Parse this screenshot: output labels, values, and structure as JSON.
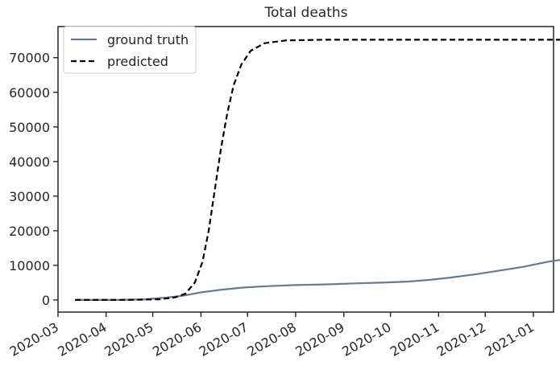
{
  "chart_data": {
    "type": "line",
    "title": "Total deaths",
    "xlabel": "",
    "ylabel": "",
    "xlim": [
      "2020-03-01",
      "2021-01-14"
    ],
    "ylim": [
      -3500,
      79000
    ],
    "x_ticks": [
      "2020-03",
      "2020-04",
      "2020-05",
      "2020-06",
      "2020-07",
      "2020-08",
      "2020-09",
      "2020-10",
      "2020-11",
      "2020-12",
      "2021-01"
    ],
    "y_ticks": [
      "0",
      "10000",
      "20000",
      "30000",
      "40000",
      "50000",
      "60000",
      "70000"
    ],
    "grid": false,
    "legend_position": "top-left",
    "series": [
      {
        "name": "ground truth",
        "color": "#6b7a90",
        "style": "solid",
        "points": [
          [
            "2020-03-12",
            0
          ],
          [
            "2020-03-25",
            0
          ],
          [
            "2020-04-10",
            0
          ],
          [
            "2020-04-26",
            200
          ],
          [
            "2020-05-10",
            700
          ],
          [
            "2020-05-20",
            1200
          ],
          [
            "2020-06-01",
            2200
          ],
          [
            "2020-06-15",
            3000
          ],
          [
            "2020-06-29",
            3600
          ],
          [
            "2020-07-15",
            4000
          ],
          [
            "2020-08-01",
            4300
          ],
          [
            "2020-08-20",
            4500
          ],
          [
            "2020-09-08",
            4800
          ],
          [
            "2020-09-25",
            5000
          ],
          [
            "2020-10-12",
            5300
          ],
          [
            "2020-10-26",
            5800
          ],
          [
            "2020-11-09",
            6500
          ],
          [
            "2020-11-26",
            7500
          ],
          [
            "2020-12-10",
            8500
          ],
          [
            "2020-12-26",
            9600
          ],
          [
            "2021-01-10",
            11000
          ],
          [
            "2021-01-24",
            12000
          ]
        ]
      },
      {
        "name": "predicted",
        "color": "#000000",
        "style": "dashed",
        "points": [
          [
            "2020-03-12",
            0
          ],
          [
            "2020-04-01",
            0
          ],
          [
            "2020-04-20",
            50
          ],
          [
            "2020-05-05",
            200
          ],
          [
            "2020-05-15",
            700
          ],
          [
            "2020-05-22",
            1800
          ],
          [
            "2020-05-28",
            5000
          ],
          [
            "2020-06-02",
            11000
          ],
          [
            "2020-06-06",
            20000
          ],
          [
            "2020-06-10",
            32000
          ],
          [
            "2020-06-14",
            44000
          ],
          [
            "2020-06-18",
            54000
          ],
          [
            "2020-06-22",
            62000
          ],
          [
            "2020-06-27",
            68000
          ],
          [
            "2020-07-03",
            72000
          ],
          [
            "2020-07-12",
            74200
          ],
          [
            "2020-07-26",
            75000
          ],
          [
            "2020-08-20",
            75200
          ],
          [
            "2020-10-01",
            75200
          ],
          [
            "2020-12-01",
            75200
          ],
          [
            "2021-01-24",
            75200
          ]
        ]
      }
    ]
  }
}
